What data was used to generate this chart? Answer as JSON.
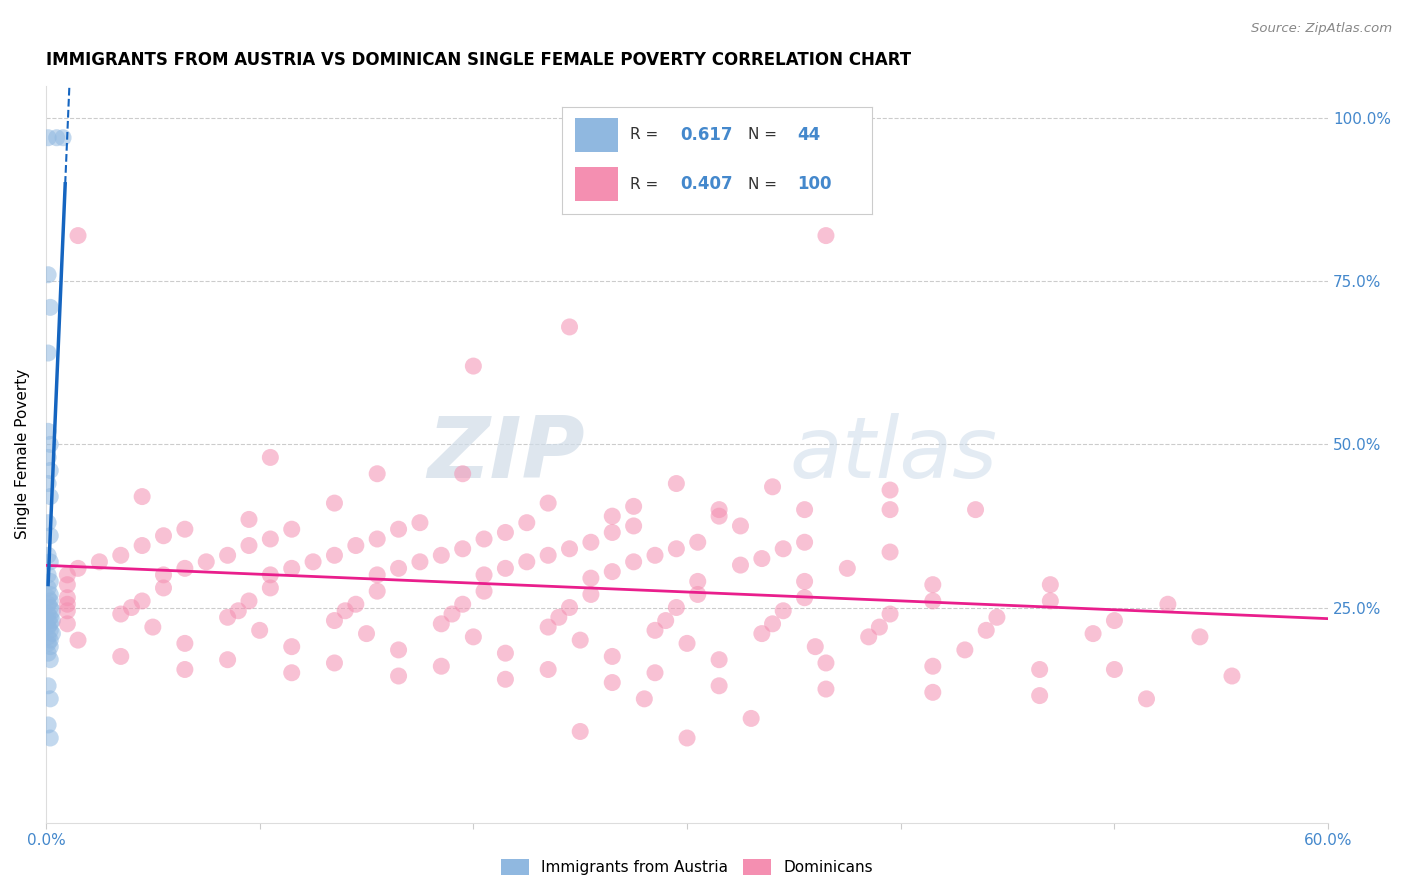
{
  "title": "IMMIGRANTS FROM AUSTRIA VS DOMINICAN SINGLE FEMALE POVERTY CORRELATION CHART",
  "source": "Source: ZipAtlas.com",
  "ylabel": "Single Female Poverty",
  "ylabel_right_vals": [
    1.0,
    0.75,
    0.5,
    0.25
  ],
  "ylabel_right_labels": [
    "100.0%",
    "75.0%",
    "50.0%",
    "25.0%"
  ],
  "xmin": 0.0,
  "xmax": 0.6,
  "ymin": -0.08,
  "ymax": 1.05,
  "blue_scatter": [
    [
      0.001,
      0.97
    ],
    [
      0.005,
      0.97
    ],
    [
      0.008,
      0.97
    ],
    [
      0.001,
      0.76
    ],
    [
      0.002,
      0.71
    ],
    [
      0.001,
      0.64
    ],
    [
      0.001,
      0.52
    ],
    [
      0.002,
      0.5
    ],
    [
      0.001,
      0.48
    ],
    [
      0.002,
      0.46
    ],
    [
      0.001,
      0.44
    ],
    [
      0.002,
      0.42
    ],
    [
      0.001,
      0.38
    ],
    [
      0.002,
      0.36
    ],
    [
      0.001,
      0.33
    ],
    [
      0.002,
      0.32
    ],
    [
      0.001,
      0.3
    ],
    [
      0.002,
      0.29
    ],
    [
      0.001,
      0.28
    ],
    [
      0.002,
      0.27
    ],
    [
      0.001,
      0.265
    ],
    [
      0.002,
      0.26
    ],
    [
      0.001,
      0.255
    ],
    [
      0.002,
      0.25
    ],
    [
      0.003,
      0.245
    ],
    [
      0.001,
      0.24
    ],
    [
      0.002,
      0.235
    ],
    [
      0.003,
      0.23
    ],
    [
      0.001,
      0.23
    ],
    [
      0.002,
      0.225
    ],
    [
      0.001,
      0.22
    ],
    [
      0.002,
      0.215
    ],
    [
      0.003,
      0.21
    ],
    [
      0.001,
      0.205
    ],
    [
      0.002,
      0.2
    ],
    [
      0.001,
      0.195
    ],
    [
      0.002,
      0.19
    ],
    [
      0.001,
      0.18
    ],
    [
      0.002,
      0.17
    ],
    [
      0.001,
      0.13
    ],
    [
      0.002,
      0.11
    ],
    [
      0.001,
      0.07
    ],
    [
      0.002,
      0.05
    ]
  ],
  "pink_scatter": [
    [
      0.015,
      0.82
    ],
    [
      0.365,
      0.82
    ],
    [
      0.245,
      0.68
    ],
    [
      0.2,
      0.62
    ],
    [
      0.105,
      0.48
    ],
    [
      0.155,
      0.455
    ],
    [
      0.195,
      0.455
    ],
    [
      0.295,
      0.44
    ],
    [
      0.34,
      0.435
    ],
    [
      0.395,
      0.43
    ],
    [
      0.045,
      0.42
    ],
    [
      0.135,
      0.41
    ],
    [
      0.235,
      0.41
    ],
    [
      0.275,
      0.405
    ],
    [
      0.315,
      0.4
    ],
    [
      0.355,
      0.4
    ],
    [
      0.395,
      0.4
    ],
    [
      0.435,
      0.4
    ],
    [
      0.265,
      0.39
    ],
    [
      0.315,
      0.39
    ],
    [
      0.095,
      0.385
    ],
    [
      0.175,
      0.38
    ],
    [
      0.225,
      0.38
    ],
    [
      0.275,
      0.375
    ],
    [
      0.325,
      0.375
    ],
    [
      0.065,
      0.37
    ],
    [
      0.115,
      0.37
    ],
    [
      0.165,
      0.37
    ],
    [
      0.215,
      0.365
    ],
    [
      0.265,
      0.365
    ],
    [
      0.055,
      0.36
    ],
    [
      0.105,
      0.355
    ],
    [
      0.155,
      0.355
    ],
    [
      0.205,
      0.355
    ],
    [
      0.255,
      0.35
    ],
    [
      0.305,
      0.35
    ],
    [
      0.355,
      0.35
    ],
    [
      0.045,
      0.345
    ],
    [
      0.095,
      0.345
    ],
    [
      0.145,
      0.345
    ],
    [
      0.195,
      0.34
    ],
    [
      0.245,
      0.34
    ],
    [
      0.295,
      0.34
    ],
    [
      0.345,
      0.34
    ],
    [
      0.395,
      0.335
    ],
    [
      0.035,
      0.33
    ],
    [
      0.085,
      0.33
    ],
    [
      0.135,
      0.33
    ],
    [
      0.185,
      0.33
    ],
    [
      0.235,
      0.33
    ],
    [
      0.285,
      0.33
    ],
    [
      0.335,
      0.325
    ],
    [
      0.025,
      0.32
    ],
    [
      0.075,
      0.32
    ],
    [
      0.125,
      0.32
    ],
    [
      0.175,
      0.32
    ],
    [
      0.225,
      0.32
    ],
    [
      0.275,
      0.32
    ],
    [
      0.325,
      0.315
    ],
    [
      0.375,
      0.31
    ],
    [
      0.015,
      0.31
    ],
    [
      0.065,
      0.31
    ],
    [
      0.115,
      0.31
    ],
    [
      0.165,
      0.31
    ],
    [
      0.215,
      0.31
    ],
    [
      0.265,
      0.305
    ],
    [
      0.01,
      0.3
    ],
    [
      0.055,
      0.3
    ],
    [
      0.105,
      0.3
    ],
    [
      0.155,
      0.3
    ],
    [
      0.205,
      0.3
    ],
    [
      0.255,
      0.295
    ],
    [
      0.305,
      0.29
    ],
    [
      0.355,
      0.29
    ],
    [
      0.415,
      0.285
    ],
    [
      0.47,
      0.285
    ],
    [
      0.01,
      0.285
    ],
    [
      0.055,
      0.28
    ],
    [
      0.105,
      0.28
    ],
    [
      0.155,
      0.275
    ],
    [
      0.205,
      0.275
    ],
    [
      0.255,
      0.27
    ],
    [
      0.305,
      0.27
    ],
    [
      0.355,
      0.265
    ],
    [
      0.415,
      0.26
    ],
    [
      0.47,
      0.26
    ],
    [
      0.525,
      0.255
    ],
    [
      0.01,
      0.265
    ],
    [
      0.045,
      0.26
    ],
    [
      0.095,
      0.26
    ],
    [
      0.145,
      0.255
    ],
    [
      0.195,
      0.255
    ],
    [
      0.245,
      0.25
    ],
    [
      0.295,
      0.25
    ],
    [
      0.345,
      0.245
    ],
    [
      0.395,
      0.24
    ],
    [
      0.445,
      0.235
    ],
    [
      0.5,
      0.23
    ],
    [
      0.01,
      0.255
    ],
    [
      0.04,
      0.25
    ],
    [
      0.09,
      0.245
    ],
    [
      0.14,
      0.245
    ],
    [
      0.19,
      0.24
    ],
    [
      0.24,
      0.235
    ],
    [
      0.29,
      0.23
    ],
    [
      0.34,
      0.225
    ],
    [
      0.39,
      0.22
    ],
    [
      0.44,
      0.215
    ],
    [
      0.49,
      0.21
    ],
    [
      0.54,
      0.205
    ],
    [
      0.01,
      0.245
    ],
    [
      0.035,
      0.24
    ],
    [
      0.085,
      0.235
    ],
    [
      0.135,
      0.23
    ],
    [
      0.185,
      0.225
    ],
    [
      0.235,
      0.22
    ],
    [
      0.285,
      0.215
    ],
    [
      0.335,
      0.21
    ],
    [
      0.385,
      0.205
    ],
    [
      0.01,
      0.225
    ],
    [
      0.05,
      0.22
    ],
    [
      0.1,
      0.215
    ],
    [
      0.15,
      0.21
    ],
    [
      0.2,
      0.205
    ],
    [
      0.25,
      0.2
    ],
    [
      0.3,
      0.195
    ],
    [
      0.36,
      0.19
    ],
    [
      0.43,
      0.185
    ],
    [
      0.015,
      0.2
    ],
    [
      0.065,
      0.195
    ],
    [
      0.115,
      0.19
    ],
    [
      0.165,
      0.185
    ],
    [
      0.215,
      0.18
    ],
    [
      0.265,
      0.175
    ],
    [
      0.315,
      0.17
    ],
    [
      0.365,
      0.165
    ],
    [
      0.415,
      0.16
    ],
    [
      0.465,
      0.155
    ],
    [
      0.035,
      0.175
    ],
    [
      0.085,
      0.17
    ],
    [
      0.135,
      0.165
    ],
    [
      0.185,
      0.16
    ],
    [
      0.235,
      0.155
    ],
    [
      0.285,
      0.15
    ],
    [
      0.5,
      0.155
    ],
    [
      0.555,
      0.145
    ],
    [
      0.065,
      0.155
    ],
    [
      0.115,
      0.15
    ],
    [
      0.165,
      0.145
    ],
    [
      0.215,
      0.14
    ],
    [
      0.265,
      0.135
    ],
    [
      0.315,
      0.13
    ],
    [
      0.365,
      0.125
    ],
    [
      0.415,
      0.12
    ],
    [
      0.465,
      0.115
    ],
    [
      0.515,
      0.11
    ],
    [
      0.28,
      0.11
    ],
    [
      0.33,
      0.08
    ],
    [
      0.25,
      0.06
    ],
    [
      0.3,
      0.05
    ]
  ],
  "blue_line_color": "#1565c0",
  "pink_line_color": "#e91e8c",
  "blue_scatter_color": "#90b8e0",
  "pink_scatter_color": "#f48fb1",
  "watermark_zip": "ZIP",
  "watermark_atlas": "atlas",
  "background_color": "#ffffff",
  "grid_color": "#cccccc",
  "title_fontsize": 12,
  "axis_label_color": "#4488cc",
  "legend_R1": "0.617",
  "legend_N1": "44",
  "legend_R2": "0.407",
  "legend_N2": "100",
  "legend_label1": "Immigrants from Austria",
  "legend_label2": "Dominicans"
}
